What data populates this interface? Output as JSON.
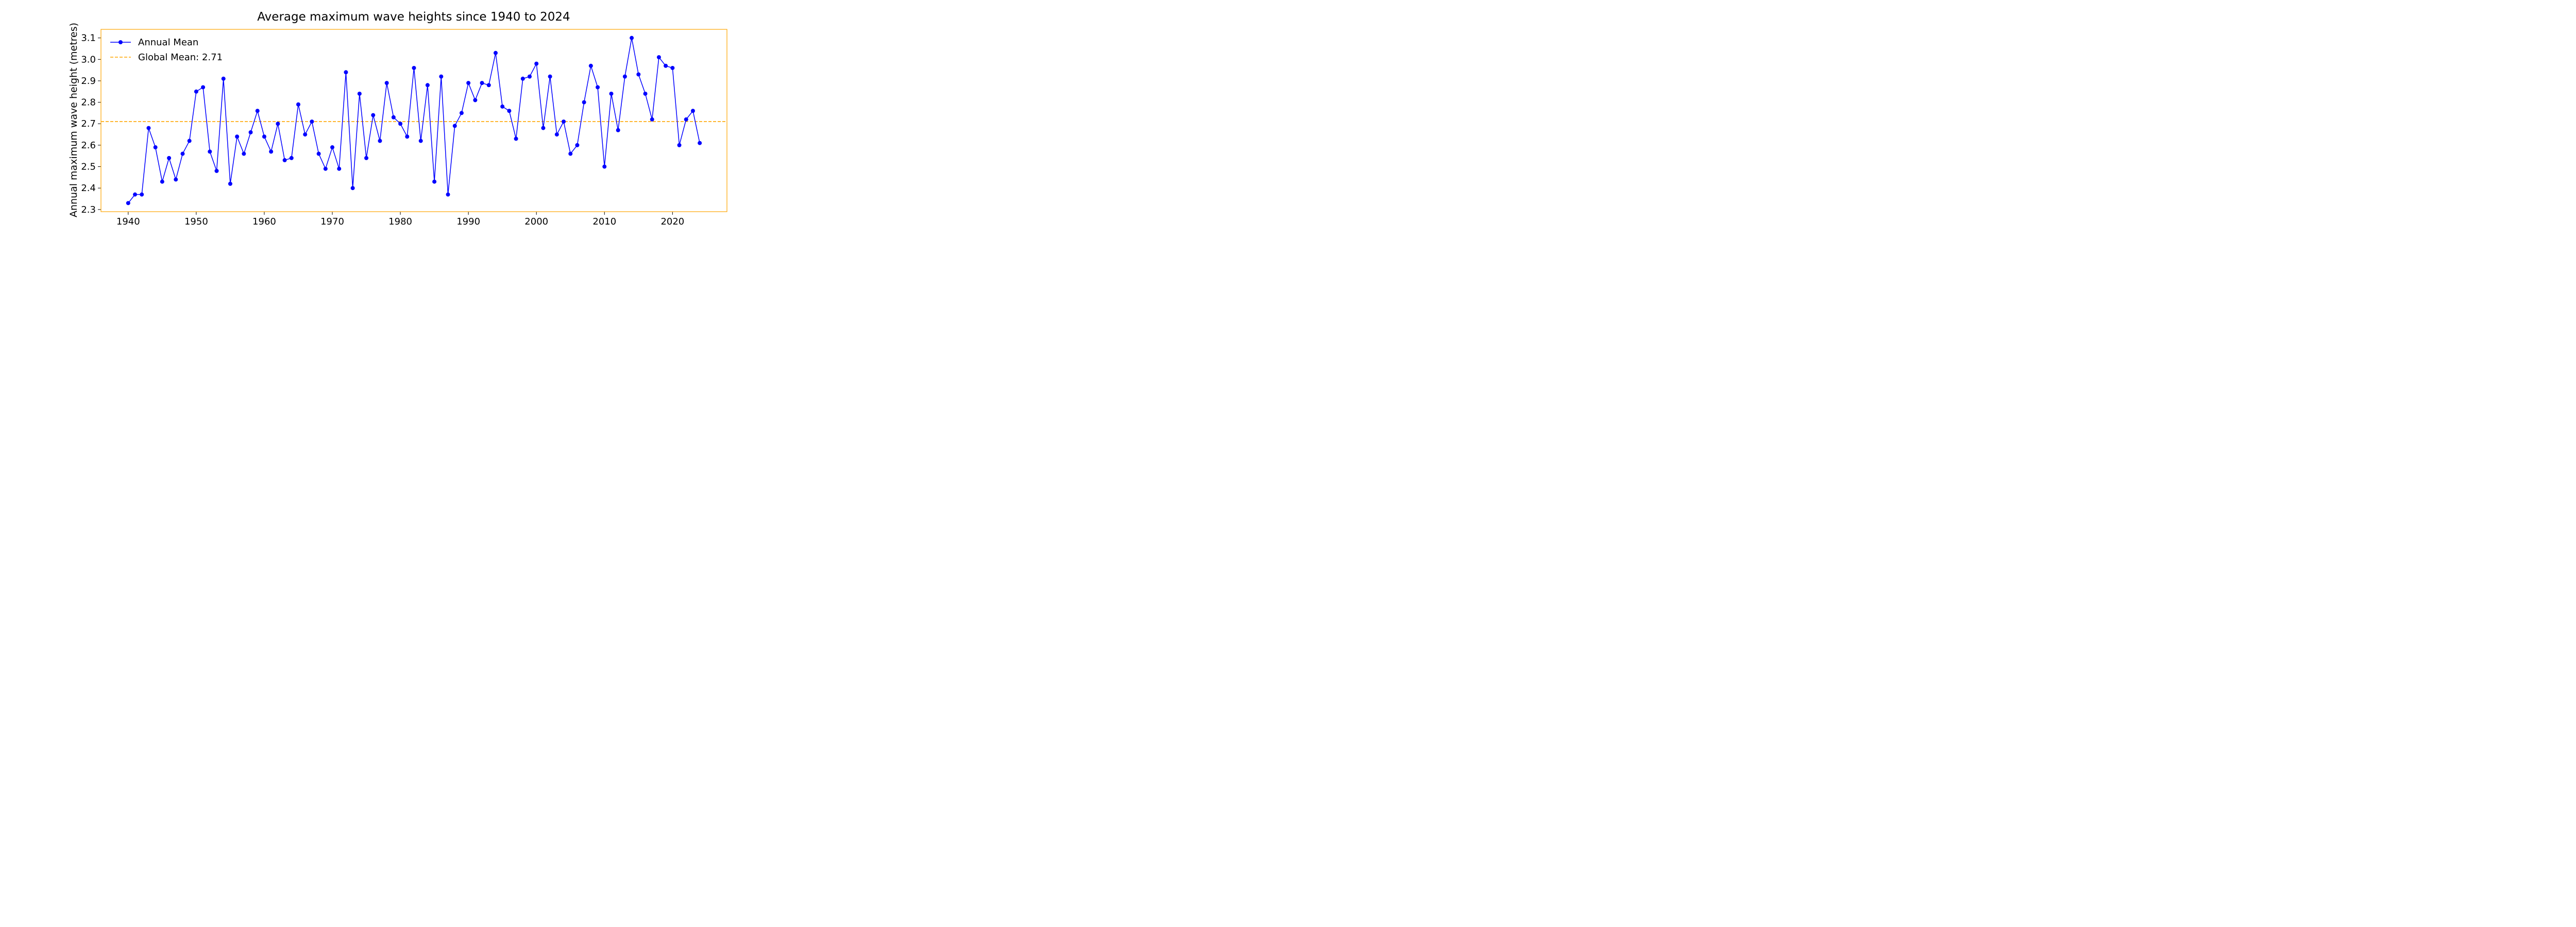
{
  "chart_data": {
    "type": "line",
    "title": "Average maximum wave heights since 1940 to 2024",
    "xlabel": "",
    "ylabel": "Annual maximum wave height (metres)",
    "xlim": [
      1936,
      2028
    ],
    "ylim": [
      2.29,
      3.14
    ],
    "x_ticks": [
      1940,
      1950,
      1960,
      1970,
      1980,
      1990,
      2000,
      2010,
      2020
    ],
    "y_ticks": [
      2.3,
      2.4,
      2.5,
      2.6,
      2.7,
      2.8,
      2.9,
      3.0,
      3.1
    ],
    "y_tick_labels": [
      "2.3",
      "2.4",
      "2.5",
      "2.6",
      "2.7",
      "2.8",
      "2.9",
      "3.0",
      "3.1"
    ],
    "grid": false,
    "legend_position": "top-left",
    "frame_color": "#ffa500",
    "series": [
      {
        "name": "Annual Mean",
        "color": "#0000ff",
        "marker": "circle",
        "x": [
          1940,
          1941,
          1942,
          1943,
          1944,
          1945,
          1946,
          1947,
          1948,
          1949,
          1950,
          1951,
          1952,
          1953,
          1954,
          1955,
          1956,
          1957,
          1958,
          1959,
          1960,
          1961,
          1962,
          1963,
          1964,
          1965,
          1966,
          1967,
          1968,
          1969,
          1970,
          1971,
          1972,
          1973,
          1974,
          1975,
          1976,
          1977,
          1978,
          1979,
          1980,
          1981,
          1982,
          1983,
          1984,
          1985,
          1986,
          1987,
          1988,
          1989,
          1990,
          1991,
          1992,
          1993,
          1994,
          1995,
          1996,
          1997,
          1998,
          1999,
          2000,
          2001,
          2002,
          2003,
          2004,
          2005,
          2006,
          2007,
          2008,
          2009,
          2010,
          2011,
          2012,
          2013,
          2014,
          2015,
          2016,
          2017,
          2018,
          2019,
          2020,
          2021,
          2022,
          2023,
          2024
        ],
        "y": [
          2.33,
          2.37,
          2.37,
          2.68,
          2.59,
          2.43,
          2.54,
          2.44,
          2.56,
          2.62,
          2.85,
          2.87,
          2.57,
          2.48,
          2.91,
          2.42,
          2.64,
          2.56,
          2.66,
          2.76,
          2.64,
          2.57,
          2.7,
          2.53,
          2.54,
          2.79,
          2.65,
          2.71,
          2.56,
          2.49,
          2.59,
          2.49,
          2.94,
          2.4,
          2.84,
          2.54,
          2.74,
          2.62,
          2.89,
          2.73,
          2.7,
          2.64,
          2.96,
          2.62,
          2.88,
          2.43,
          2.92,
          2.37,
          2.69,
          2.75,
          2.89,
          2.81,
          2.89,
          2.88,
          3.03,
          2.78,
          2.76,
          2.63,
          2.91,
          2.92,
          2.98,
          2.68,
          2.92,
          2.65,
          2.71,
          2.56,
          2.6,
          2.8,
          2.97,
          2.87,
          2.5,
          2.84,
          2.67,
          2.92,
          3.1,
          2.93,
          2.84,
          2.72,
          3.01,
          2.97,
          2.96,
          2.6,
          2.72,
          2.76,
          2.61
        ]
      }
    ],
    "reference_lines": [
      {
        "name": "Global Mean: 2.71",
        "value": 2.71,
        "color": "#ffa500",
        "style": "dashed"
      }
    ]
  }
}
